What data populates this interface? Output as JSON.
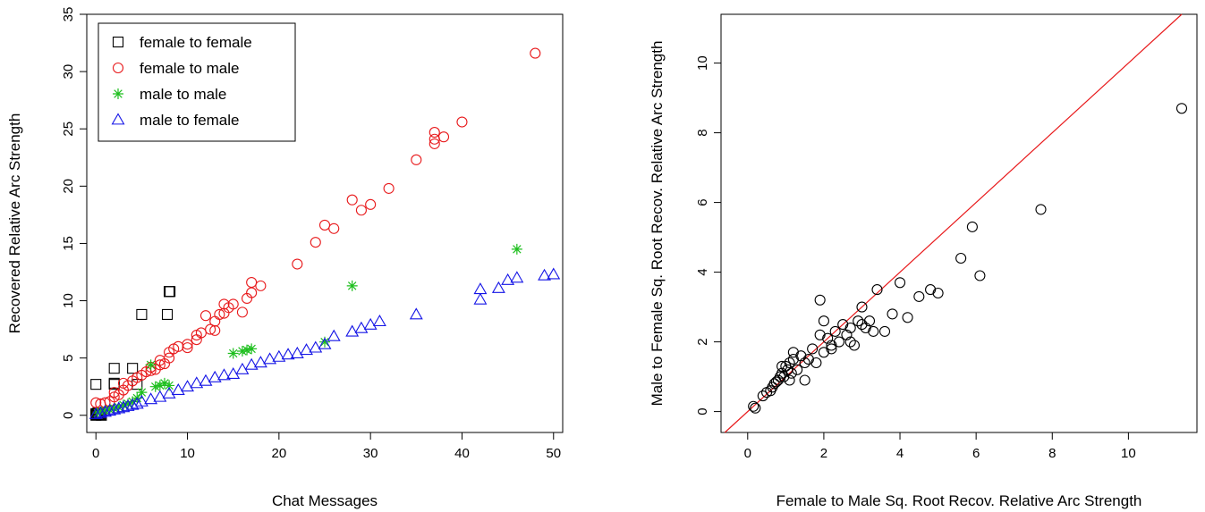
{
  "colors": {
    "female_to_female": "#000000",
    "female_to_male": "#e8191b",
    "male_to_male": "#1fbf1f",
    "male_to_female": "#1414e6",
    "right_points": "#000000",
    "reference_line": "#e8191b"
  },
  "chart_data": [
    {
      "type": "scatter",
      "title": "",
      "xlabel": "Chat Messages",
      "ylabel": "Recovered Relative Arc Strength",
      "xlim": [
        -1,
        51
      ],
      "ylim": [
        -1.5,
        35
      ],
      "xticks": [
        0,
        10,
        20,
        30,
        40,
        50
      ],
      "yticks": [
        0,
        5,
        10,
        15,
        20,
        25,
        30,
        35
      ],
      "grid": false,
      "legend_position": "top-left",
      "series": [
        {
          "name": "female to female",
          "marker": "square",
          "x": [
            0,
            0,
            0.3,
            0.6,
            0,
            0.2,
            0.5,
            0.1,
            2,
            2,
            2,
            4,
            5,
            4.5,
            8,
            8,
            7.8,
            8.1,
            0,
            0.4
          ],
          "y": [
            2.7,
            0,
            0.1,
            0,
            0.05,
            0.2,
            0.05,
            0.1,
            4.1,
            2.7,
            2.8,
            4.1,
            8.8,
            2.7,
            10.8,
            10.8,
            8.8,
            10.8,
            0.15,
            0.1
          ]
        },
        {
          "name": "female to male",
          "marker": "circle",
          "x": [
            0,
            0.5,
            1,
            1.5,
            2,
            2,
            2.5,
            3,
            3,
            3.5,
            4,
            4.5,
            5,
            5.5,
            6,
            6,
            6.5,
            7,
            7,
            7.5,
            8,
            8,
            8.5,
            9,
            10,
            10,
            11,
            11,
            11.5,
            12,
            12.5,
            13,
            13,
            13.5,
            14,
            14,
            14.5,
            15,
            16,
            16.5,
            17,
            17,
            18,
            22,
            24,
            25,
            26,
            28,
            29,
            30,
            32,
            35,
            37,
            37,
            37,
            38,
            40,
            48
          ],
          "y": [
            1.1,
            1.0,
            1.1,
            1.2,
            1.6,
            2.0,
            1.8,
            2.2,
            2.8,
            2.6,
            3.0,
            3.3,
            3.5,
            3.8,
            3.9,
            4.2,
            4.0,
            4.4,
            4.8,
            4.5,
            5.0,
            5.5,
            5.8,
            6.0,
            5.9,
            6.2,
            6.6,
            7.0,
            7.2,
            8.7,
            7.5,
            7.4,
            8.2,
            8.8,
            8.9,
            9.7,
            9.4,
            9.7,
            9.0,
            10.2,
            10.7,
            11.6,
            11.3,
            13.2,
            15.1,
            16.6,
            16.3,
            18.8,
            17.9,
            18.4,
            19.8,
            22.3,
            23.7,
            24.1,
            24.7,
            24.3,
            25.6,
            31.6
          ]
        },
        {
          "name": "male to male",
          "marker": "asterisk",
          "x": [
            0.2,
            0.5,
            1,
            1.5,
            2,
            2.5,
            3,
            3.5,
            4,
            4.5,
            5,
            6,
            6.5,
            7,
            7.5,
            8,
            15,
            16,
            16.5,
            17,
            25,
            28,
            46
          ],
          "y": [
            0.2,
            0.3,
            0.4,
            0.5,
            0.6,
            0.7,
            0.9,
            1.0,
            1.2,
            1.5,
            2.0,
            4.4,
            2.5,
            2.6,
            2.8,
            2.6,
            5.4,
            5.6,
            5.7,
            5.8,
            6.4,
            11.3,
            14.5
          ]
        },
        {
          "name": "male to female",
          "marker": "triangle",
          "x": [
            0,
            0.5,
            1,
            1.5,
            2,
            2.5,
            3,
            3.5,
            4,
            4.5,
            5,
            6,
            7,
            8,
            9,
            10,
            11,
            12,
            13,
            14,
            15,
            16,
            17,
            18,
            19,
            20,
            21,
            22,
            23,
            24,
            25,
            26,
            28,
            29,
            30,
            31,
            35,
            42,
            42,
            44,
            45,
            46,
            49,
            50
          ],
          "y": [
            0.1,
            0.2,
            0.3,
            0.4,
            0.5,
            0.6,
            0.7,
            0.8,
            0.9,
            1.0,
            1.2,
            1.4,
            1.6,
            1.9,
            2.2,
            2.5,
            2.8,
            3.0,
            3.3,
            3.5,
            3.6,
            4.0,
            4.4,
            4.6,
            4.9,
            5.1,
            5.3,
            5.4,
            5.7,
            5.9,
            6.2,
            6.9,
            7.3,
            7.6,
            7.9,
            8.2,
            8.8,
            10.1,
            11.0,
            11.1,
            11.8,
            12.0,
            12.2,
            12.3
          ]
        }
      ]
    },
    {
      "type": "scatter",
      "title": "",
      "xlabel": "Female to Male Sq. Root Recov. Relative Arc Strength",
      "ylabel": "Male to Female Sq. Root Recov. Relative Arc Strength",
      "xlim": [
        -0.7,
        11.8
      ],
      "ylim": [
        -0.6,
        11.4
      ],
      "xticks": [
        0,
        2,
        4,
        6,
        8,
        10
      ],
      "yticks": [
        0,
        2,
        4,
        6,
        8,
        10
      ],
      "grid": false,
      "reference_line": "y = x",
      "series": [
        {
          "marker": "circle",
          "x": [
            0.15,
            0.2,
            0.4,
            0.5,
            0.6,
            0.65,
            0.7,
            0.75,
            0.8,
            0.85,
            0.9,
            0.95,
            1.0,
            1.05,
            1.1,
            1.15,
            1.2,
            1.3,
            1.4,
            1.5,
            1.6,
            1.7,
            1.8,
            1.9,
            2.0,
            2.1,
            2.2,
            2.3,
            2.4,
            2.5,
            2.6,
            2.7,
            2.8,
            2.9,
            3.0,
            3.1,
            3.2,
            3.3,
            3.4,
            3.6,
            3.8,
            4.0,
            4.2,
            4.5,
            4.8,
            5.0,
            5.6,
            5.9,
            6.1,
            7.7,
            11.4,
            1.5,
            1.9,
            2.0,
            3.0,
            2.7,
            1.2,
            0.9,
            1.1,
            2.2
          ],
          "y": [
            0.15,
            0.1,
            0.45,
            0.55,
            0.6,
            0.7,
            0.8,
            0.85,
            0.9,
            1.0,
            1.1,
            1.0,
            1.3,
            1.2,
            1.4,
            1.1,
            1.5,
            1.2,
            1.6,
            1.4,
            1.5,
            1.8,
            1.4,
            2.2,
            1.7,
            2.1,
            1.9,
            2.3,
            2.0,
            2.5,
            2.2,
            2.4,
            1.9,
            2.6,
            2.5,
            2.4,
            2.6,
            2.3,
            3.5,
            2.3,
            2.8,
            3.7,
            2.7,
            3.3,
            3.5,
            3.4,
            4.4,
            5.3,
            3.9,
            5.8,
            8.7,
            0.9,
            3.2,
            2.6,
            3.0,
            2.0,
            1.7,
            1.3,
            0.9,
            1.8
          ]
        }
      ]
    }
  ]
}
